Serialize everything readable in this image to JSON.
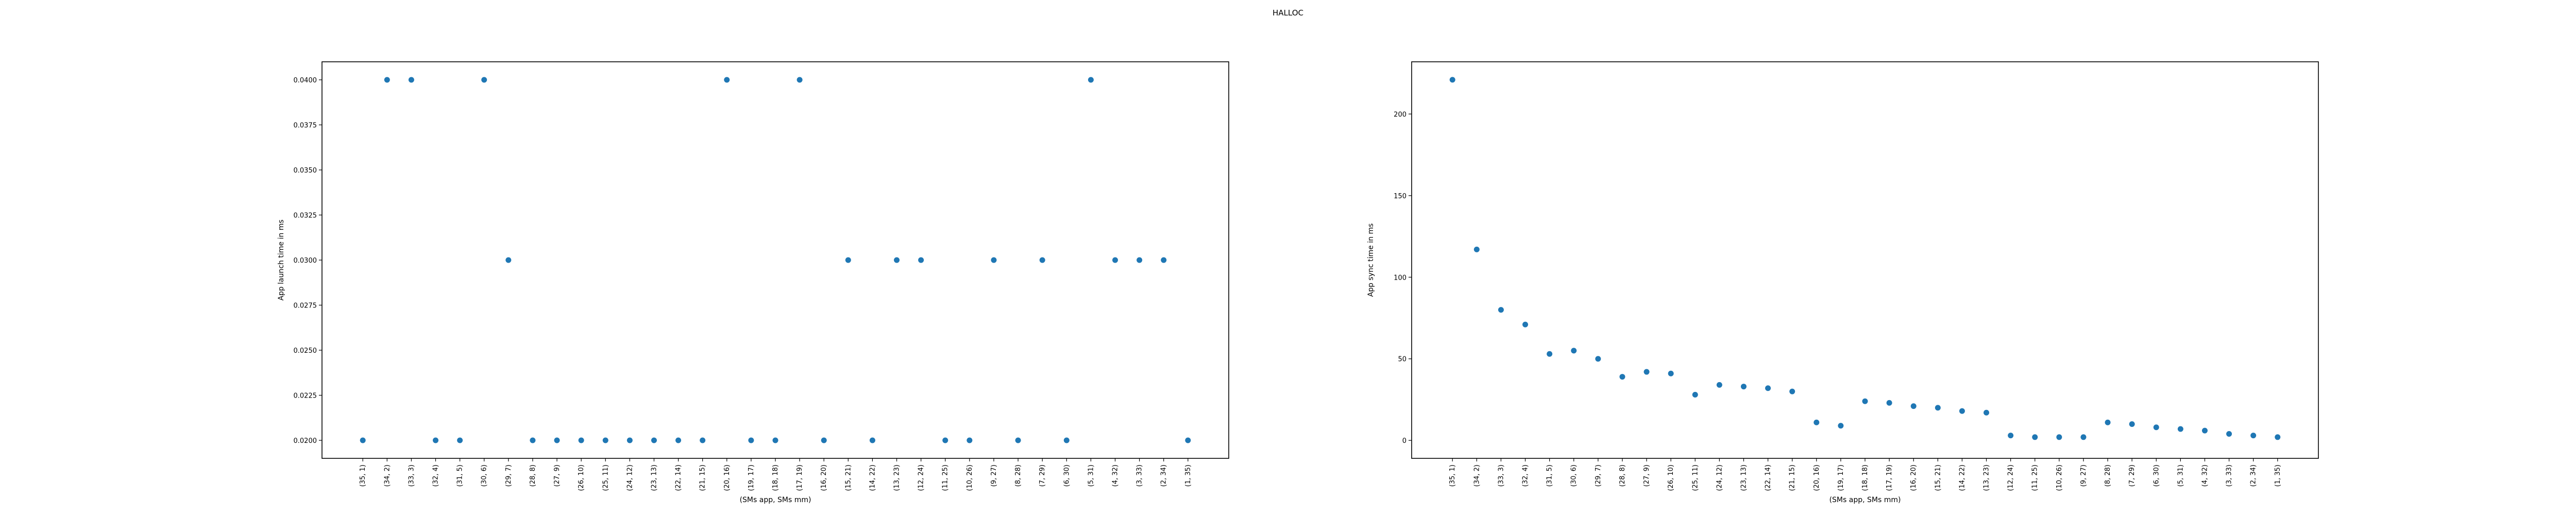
{
  "figure": {
    "title": "HALLOC"
  },
  "colors": {
    "marker": "#1f77b4",
    "axes": "#000000",
    "background": "#ffffff"
  },
  "chart_data": [
    {
      "type": "scatter",
      "title": "",
      "xlabel": "(SMs app, SMs mm)",
      "ylabel": "App launch time in ms",
      "grid": false,
      "ylim": [
        0.019,
        0.041
      ],
      "yticks": [
        0.02,
        0.0225,
        0.025,
        0.0275,
        0.03,
        0.0325,
        0.035,
        0.0375,
        0.04
      ],
      "ytick_labels": [
        "0.0200",
        "0.0225",
        "0.0250",
        "0.0275",
        "0.0300",
        "0.0325",
        "0.0350",
        "0.0375",
        "0.0400"
      ],
      "categories": [
        "(35, 1)",
        "(34, 2)",
        "(33, 3)",
        "(32, 4)",
        "(31, 5)",
        "(30, 6)",
        "(29, 7)",
        "(28, 8)",
        "(27, 9)",
        "(26, 10)",
        "(25, 11)",
        "(24, 12)",
        "(23, 13)",
        "(22, 14)",
        "(21, 15)",
        "(20, 16)",
        "(19, 17)",
        "(18, 18)",
        "(17, 19)",
        "(16, 20)",
        "(15, 21)",
        "(14, 22)",
        "(13, 23)",
        "(12, 24)",
        "(11, 25)",
        "(10, 26)",
        "(9, 27)",
        "(8, 28)",
        "(7, 29)",
        "(6, 30)",
        "(5, 31)",
        "(4, 32)",
        "(3, 33)",
        "(2, 34)",
        "(1, 35)"
      ],
      "values": [
        0.02,
        0.04,
        0.04,
        0.02,
        0.02,
        0.04,
        0.03,
        0.02,
        0.02,
        0.02,
        0.02,
        0.02,
        0.02,
        0.02,
        0.02,
        0.04,
        0.02,
        0.02,
        0.04,
        0.02,
        0.03,
        0.02,
        0.03,
        0.03,
        0.02,
        0.02,
        0.03,
        0.02,
        0.03,
        0.02,
        0.04,
        0.03,
        0.03,
        0.03,
        0.02
      ]
    },
    {
      "type": "scatter",
      "title": "",
      "xlabel": "(SMs app, SMs mm)",
      "ylabel": "App sync time in ms",
      "grid": false,
      "ylim": [
        -11,
        232
      ],
      "yticks": [
        0,
        50,
        100,
        150,
        200
      ],
      "ytick_labels": [
        "0",
        "50",
        "100",
        "150",
        "200"
      ],
      "categories": [
        "(35, 1)",
        "(34, 2)",
        "(33, 3)",
        "(32, 4)",
        "(31, 5)",
        "(30, 6)",
        "(29, 7)",
        "(28, 8)",
        "(27, 9)",
        "(26, 10)",
        "(25, 11)",
        "(24, 12)",
        "(23, 13)",
        "(22, 14)",
        "(21, 15)",
        "(20, 16)",
        "(19, 17)",
        "(18, 18)",
        "(17, 19)",
        "(16, 20)",
        "(15, 21)",
        "(14, 22)",
        "(13, 23)",
        "(12, 24)",
        "(11, 25)",
        "(10, 26)",
        "(9, 27)",
        "(8, 28)",
        "(7, 29)",
        "(6, 30)",
        "(5, 31)",
        "(4, 32)",
        "(3, 33)",
        "(2, 34)",
        "(1, 35)"
      ],
      "values": [
        221,
        117,
        80,
        71,
        53,
        55,
        50,
        39,
        42,
        41,
        28,
        34,
        33,
        32,
        30,
        11,
        9,
        24,
        23,
        21,
        20,
        18,
        17,
        3,
        2,
        2,
        2,
        11,
        10,
        8,
        7,
        6,
        4,
        3,
        2
      ]
    }
  ]
}
